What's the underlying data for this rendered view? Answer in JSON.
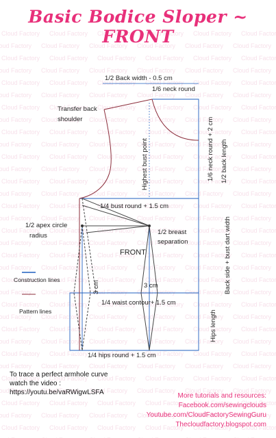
{
  "title": "Basic Bodice Sloper ~ FRONT",
  "watermark": "Cloud Factory",
  "labels": {
    "back_width": "1/2 Back width - 0.5 cm",
    "neck_round": "1/6 neck round",
    "transfer_back_shoulder_1": "Transfer back",
    "transfer_back_shoulder_2": "shoulder",
    "highest_bust_point": "Highest bust point",
    "neck_round_plus_2": "1/6  neck round + 2 cm",
    "back_length": "1/2  back length",
    "bust_round": "1/4 bust round + 1.5 cm",
    "back_side_bust_dart": "Back side + bust dart width",
    "apex_circle_1": "1/2 apex circle",
    "apex_circle_2": "radius",
    "breast_separation_1": "1/2 breast",
    "breast_separation_2": "separation",
    "front": "FRONT",
    "three_cm_left": "3 cm",
    "three_cm_right": "3 cm",
    "waist_contour": "1/4 waist contour+ 1.5 cm",
    "hips_length": "Hips length",
    "hips_round": "1/4 hips round + 1.5 cm"
  },
  "legend": {
    "construction": "Construction lines",
    "pattern": "Pattern lines"
  },
  "video_note": {
    "line1": "To trace a perfect armhole curve",
    "line2": "watch the video :",
    "url": "https://youtu.be/vaRWigwLSFA"
  },
  "resources": {
    "heading": "More tutorials and resources:",
    "facebook": "Facebook.com/sewingclouds",
    "youtube": "Youtube.com/CloudFactorySewingGuru",
    "blog": "Thecloudfactory.blogspot.com"
  },
  "colors": {
    "title": "#e8307a",
    "construction_line": "#1f5fbf",
    "pattern_line": "#8b2c3a",
    "resources_text": "#e8307a",
    "watermark": "#f7e0ea"
  }
}
